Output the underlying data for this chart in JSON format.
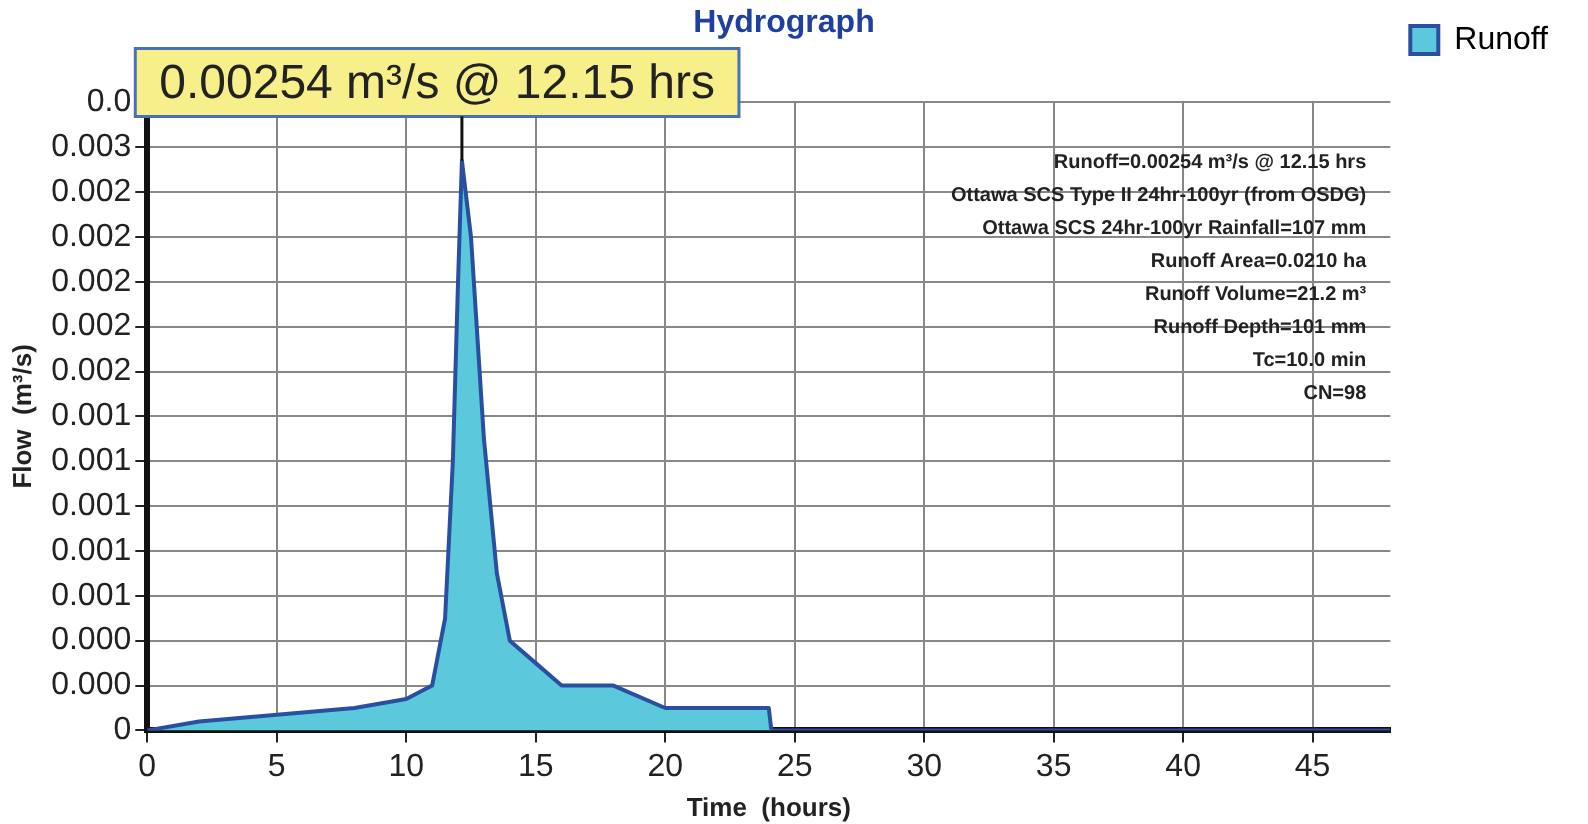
{
  "chart_data": {
    "type": "area",
    "title": "Hydrograph",
    "xlabel": "Time  (hours)",
    "ylabel": "Flow  (m³/s)",
    "x": [
      0,
      2,
      4,
      6,
      8,
      10,
      11,
      11.5,
      11.8,
      12,
      12.15,
      12.5,
      13,
      13.5,
      14,
      15,
      16,
      18,
      20,
      22,
      24,
      24.1,
      30,
      40,
      48
    ],
    "series": [
      {
        "name": "Runoff",
        "color": "#5bc8dc",
        "values": [
          0,
          4e-05,
          6e-05,
          8e-05,
          0.0001,
          0.00014,
          0.0002,
          0.0005,
          0.0012,
          0.002,
          0.00254,
          0.0022,
          0.0013,
          0.0007,
          0.0004,
          0.0003,
          0.0002,
          0.0002,
          0.0001,
          0.0001,
          0.0001,
          0,
          0,
          0,
          0
        ]
      }
    ],
    "xlim": [
      0,
      48
    ],
    "xticks": [
      0,
      5,
      10,
      15,
      20,
      25,
      30,
      35,
      40,
      45
    ],
    "ylim": [
      0,
      0.0028
    ],
    "yticks": [
      0,
      {
        "value": 0.0002,
        "label": "0.000"
      },
      {
        "value": 0.0004,
        "label": "0.000"
      },
      {
        "value": 0.0006,
        "label": "0.001"
      },
      {
        "value": 0.0008,
        "label": "0.001"
      },
      {
        "value": 0.001,
        "label": "0.001"
      },
      {
        "value": 0.0012,
        "label": "0.001"
      },
      {
        "value": 0.0014,
        "label": "0.001"
      },
      {
        "value": 0.0016,
        "label": "0.002"
      },
      {
        "value": 0.0018,
        "label": "0.002"
      },
      {
        "value": 0.002,
        "label": "0.002"
      },
      {
        "value": 0.0022,
        "label": "0.002"
      },
      {
        "value": 0.0024,
        "label": "0.002"
      },
      {
        "value": 0.0026,
        "label": "0.003"
      },
      {
        "value": 0.0028,
        "label": "0.0"
      }
    ],
    "grid": true,
    "legend": "top right",
    "marker": "none",
    "line_style": "solid",
    "annotations": [
      "0.00254 m³/s @ 12.15 hrs",
      "Runoff=0.00254 m³/s @ 12.15 hrs",
      "Ottawa SCS Type II 24hr-100yr (from OSDG)",
      "Ottawa SCS 24hr-100yr Rainfall=107 mm",
      "Runoff Area=0.0210 ha",
      "Runoff Volume=21.2 m³",
      "Runoff Depth=101 mm",
      "Tc=10.0 min",
      "CN=98"
    ]
  }
}
